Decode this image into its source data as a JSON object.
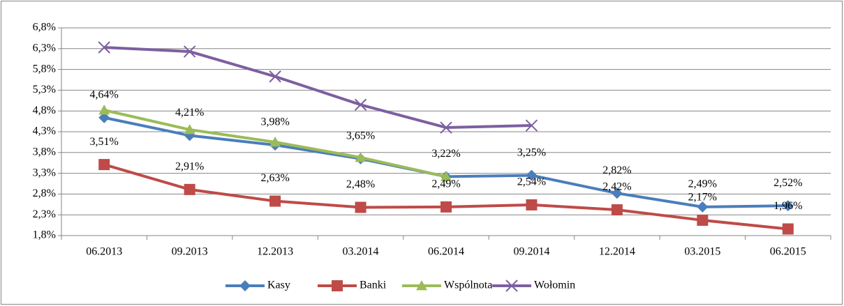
{
  "chart_data": {
    "type": "line",
    "categories": [
      "06.2013",
      "09.2013",
      "12.2013",
      "03.2014",
      "06.2014",
      "09.2014",
      "12.2014",
      "03.2015",
      "06.2015"
    ],
    "ylim": [
      1.8,
      6.8
    ],
    "yticks": [
      {
        "value": 1.8,
        "label": "1,8%"
      },
      {
        "value": 2.3,
        "label": "2,3%"
      },
      {
        "value": 2.8,
        "label": "2,8%"
      },
      {
        "value": 3.3,
        "label": "3,3%"
      },
      {
        "value": 3.8,
        "label": "3,8%"
      },
      {
        "value": 4.3,
        "label": "4,3%"
      },
      {
        "value": 4.8,
        "label": "4,8%"
      },
      {
        "value": 5.3,
        "label": "5,3%"
      },
      {
        "value": 5.8,
        "label": "5,8%"
      },
      {
        "value": 6.3,
        "label": "6,3%"
      },
      {
        "value": 6.8,
        "label": "6,8%"
      }
    ],
    "grid": true,
    "legend": "bottom",
    "series": [
      {
        "name": "Kasy",
        "color": "#4a7ebb",
        "marker": "diamond",
        "values": [
          4.64,
          4.21,
          3.98,
          3.65,
          3.22,
          3.25,
          2.82,
          2.49,
          2.52
        ],
        "value_labels": [
          "4,64%",
          "4,21%",
          "3,98%",
          "3,65%",
          "3,22%",
          "3,25%",
          "2,82%",
          "2,49%",
          "2,52%"
        ]
      },
      {
        "name": "Banki",
        "color": "#be4b48",
        "marker": "square",
        "values": [
          3.51,
          2.91,
          2.63,
          2.48,
          2.49,
          2.54,
          2.42,
          2.17,
          1.96
        ],
        "value_labels": [
          "3,51%",
          "2,91%",
          "2,63%",
          "2,48%",
          "2,49%",
          "2,54%",
          "2,42%",
          "2,17%",
          "1,96%"
        ]
      },
      {
        "name": "Wspólnota",
        "color": "#9bbb59",
        "marker": "triangle",
        "values": [
          4.82,
          4.35,
          4.05,
          3.68,
          3.22,
          null,
          null,
          null,
          null
        ]
      },
      {
        "name": "Wołomin",
        "color": "#7d5fa0",
        "marker": "x",
        "values": [
          6.33,
          6.23,
          5.63,
          4.95,
          4.4,
          4.45,
          null,
          null,
          null
        ]
      }
    ]
  }
}
